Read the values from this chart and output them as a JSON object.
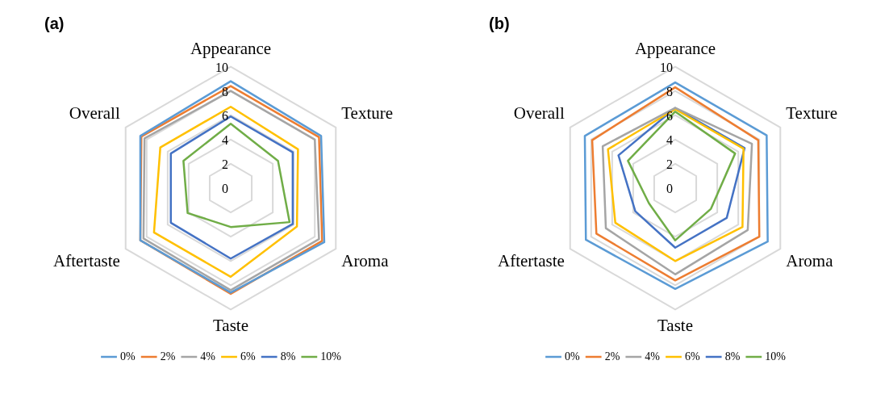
{
  "chart_data": [
    {
      "type": "radar",
      "title": "(a)",
      "categories": [
        "Appearance",
        "Texture",
        "Aroma",
        "Taste",
        "Aftertaste",
        "Overall"
      ],
      "ylim": [
        0,
        10
      ],
      "yticks": [
        0,
        2,
        4,
        6,
        8,
        10
      ],
      "grid": true,
      "legend": "bottom",
      "marker": "none",
      "series": [
        {
          "name": "0%",
          "color": "#5b9bd5",
          "values": [
            8.8,
            8.6,
            8.9,
            8.6,
            8.6,
            8.6
          ]
        },
        {
          "name": "2%",
          "color": "#ed7d31",
          "values": [
            8.4,
            8.4,
            8.7,
            8.7,
            8.6,
            8.5
          ]
        },
        {
          "name": "4%",
          "color": "#a5a5a5",
          "values": [
            8.0,
            8.0,
            8.4,
            8.4,
            8.3,
            8.2
          ]
        },
        {
          "name": "6%",
          "color": "#ffc000",
          "values": [
            6.7,
            6.4,
            6.3,
            7.3,
            7.3,
            6.7
          ]
        },
        {
          "name": "8%",
          "color": "#4472c4",
          "values": [
            5.9,
            5.9,
            5.9,
            5.8,
            5.7,
            5.7
          ]
        },
        {
          "name": "10%",
          "color": "#70ad47",
          "values": [
            5.3,
            4.5,
            5.6,
            3.2,
            4.1,
            4.5
          ]
        }
      ]
    },
    {
      "type": "radar",
      "title": "(b)",
      "categories": [
        "Appearance",
        "Texture",
        "Aroma",
        "Taste",
        "Aftertaste",
        "Overall"
      ],
      "ylim": [
        0,
        10
      ],
      "yticks": [
        0,
        2,
        4,
        6,
        8,
        10
      ],
      "grid": true,
      "legend": "bottom",
      "marker": "none",
      "series": [
        {
          "name": "0%",
          "color": "#5b9bd5",
          "values": [
            8.7,
            8.7,
            8.8,
            8.3,
            8.5,
            8.6
          ]
        },
        {
          "name": "2%",
          "color": "#ed7d31",
          "values": [
            8.3,
            7.9,
            8.0,
            7.6,
            7.5,
            7.9
          ]
        },
        {
          "name": "4%",
          "color": "#a5a5a5",
          "values": [
            6.6,
            7.3,
            6.9,
            7.1,
            6.6,
            6.9
          ]
        },
        {
          "name": "6%",
          "color": "#ffc000",
          "values": [
            6.5,
            6.5,
            6.4,
            6.0,
            5.7,
            6.4
          ]
        },
        {
          "name": "8%",
          "color": "#4472c4",
          "values": [
            6.6,
            6.6,
            4.9,
            4.9,
            3.8,
            5.4
          ]
        },
        {
          "name": "10%",
          "color": "#70ad47",
          "values": [
            6.3,
            5.7,
            3.4,
            4.3,
            2.5,
            4.5
          ]
        }
      ]
    }
  ]
}
